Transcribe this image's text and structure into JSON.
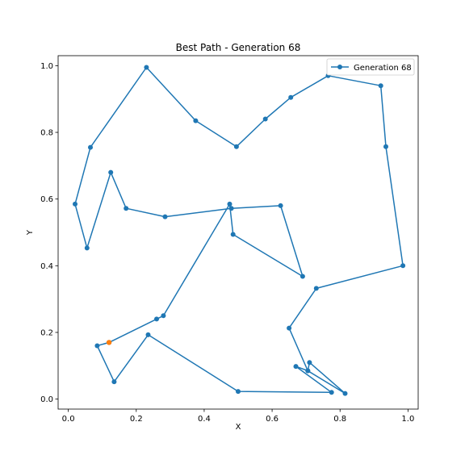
{
  "chart_data": {
    "type": "line",
    "title": "Best Path - Generation 68",
    "xlabel": "X",
    "ylabel": "Y",
    "xlim": [
      -0.03,
      1.03
    ],
    "ylim": [
      -0.03,
      1.03
    ],
    "xticks": [
      "0.0",
      "0.2",
      "0.4",
      "0.6",
      "0.8",
      "1.0"
    ],
    "yticks": [
      "0.0",
      "0.2",
      "0.4",
      "0.6",
      "0.8",
      "1.0"
    ],
    "grid": false,
    "legend_position": "top-right",
    "series": [
      {
        "name": "Generation 68",
        "color": "#1f77b4",
        "marker": "circle",
        "points": [
          [
            0.12,
            0.17
          ],
          [
            0.085,
            0.16
          ],
          [
            0.135,
            0.052
          ],
          [
            0.235,
            0.193
          ],
          [
            0.5,
            0.023
          ],
          [
            0.775,
            0.02
          ],
          [
            0.67,
            0.098
          ],
          [
            0.705,
            0.085
          ],
          [
            0.815,
            0.017
          ],
          [
            0.71,
            0.11
          ],
          [
            0.705,
            0.085
          ],
          [
            0.65,
            0.213
          ],
          [
            0.73,
            0.332
          ],
          [
            0.985,
            0.4
          ],
          [
            0.935,
            0.757
          ],
          [
            0.92,
            0.94
          ],
          [
            0.765,
            0.97
          ],
          [
            0.655,
            0.905
          ],
          [
            0.58,
            0.84
          ],
          [
            0.495,
            0.757
          ],
          [
            0.375,
            0.835
          ],
          [
            0.23,
            0.995
          ],
          [
            0.065,
            0.755
          ],
          [
            0.02,
            0.585
          ],
          [
            0.055,
            0.453
          ],
          [
            0.125,
            0.68
          ],
          [
            0.17,
            0.572
          ],
          [
            0.285,
            0.547
          ],
          [
            0.48,
            0.572
          ],
          [
            0.625,
            0.58
          ],
          [
            0.69,
            0.368
          ],
          [
            0.485,
            0.494
          ],
          [
            0.475,
            0.585
          ],
          [
            0.28,
            0.25
          ],
          [
            0.26,
            0.24
          ],
          [
            0.12,
            0.17
          ]
        ]
      }
    ],
    "start_point": {
      "x": 0.12,
      "y": 0.17,
      "color": "#ff7f0e"
    }
  }
}
